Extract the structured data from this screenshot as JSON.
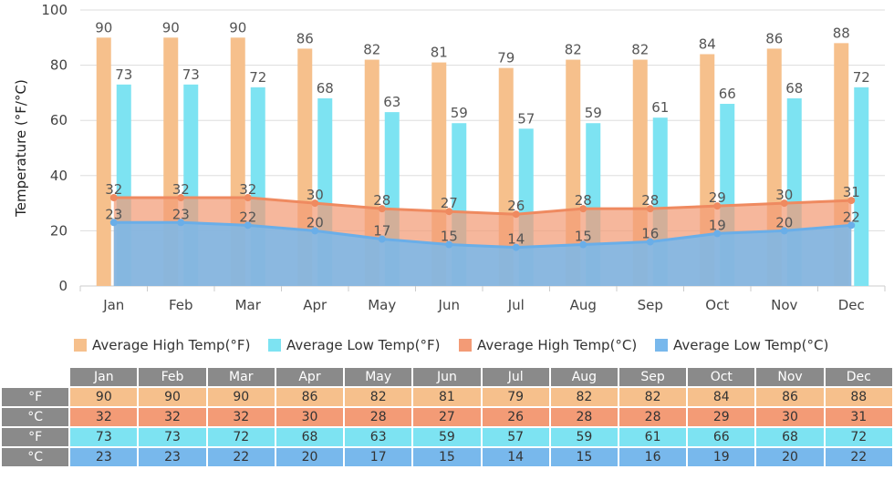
{
  "chart_data": {
    "type": "bar",
    "categories": [
      "Jan",
      "Feb",
      "Mar",
      "Apr",
      "May",
      "Jun",
      "Jul",
      "Aug",
      "Sep",
      "Oct",
      "Nov",
      "Dec"
    ],
    "ylabel": "Temperature (°F/°C)",
    "ylim": [
      0,
      100
    ],
    "yticks": [
      0,
      20,
      40,
      60,
      80,
      100
    ],
    "grid": true,
    "legend_position": "bottom",
    "series": [
      {
        "name": "Average High Temp(°F)",
        "kind": "bar",
        "color": "#f6c08c",
        "values": [
          90,
          90,
          90,
          86,
          82,
          81,
          79,
          82,
          82,
          84,
          86,
          88
        ]
      },
      {
        "name": "Average Low Temp(°F)",
        "kind": "bar",
        "color": "#7de3f2",
        "values": [
          73,
          73,
          72,
          68,
          63,
          59,
          57,
          59,
          61,
          66,
          68,
          72
        ]
      },
      {
        "name": "Average High Temp(°C)",
        "kind": "area",
        "color": "#f39b76",
        "values": [
          32,
          32,
          32,
          30,
          28,
          27,
          26,
          28,
          28,
          29,
          30,
          31
        ]
      },
      {
        "name": "Average Low Temp(°C)",
        "kind": "area",
        "color": "#78b8ec",
        "values": [
          23,
          23,
          22,
          20,
          17,
          15,
          14,
          15,
          16,
          19,
          20,
          22
        ]
      }
    ]
  },
  "table": {
    "row_labels": [
      "°F",
      "°C",
      "°F",
      "°C"
    ]
  }
}
